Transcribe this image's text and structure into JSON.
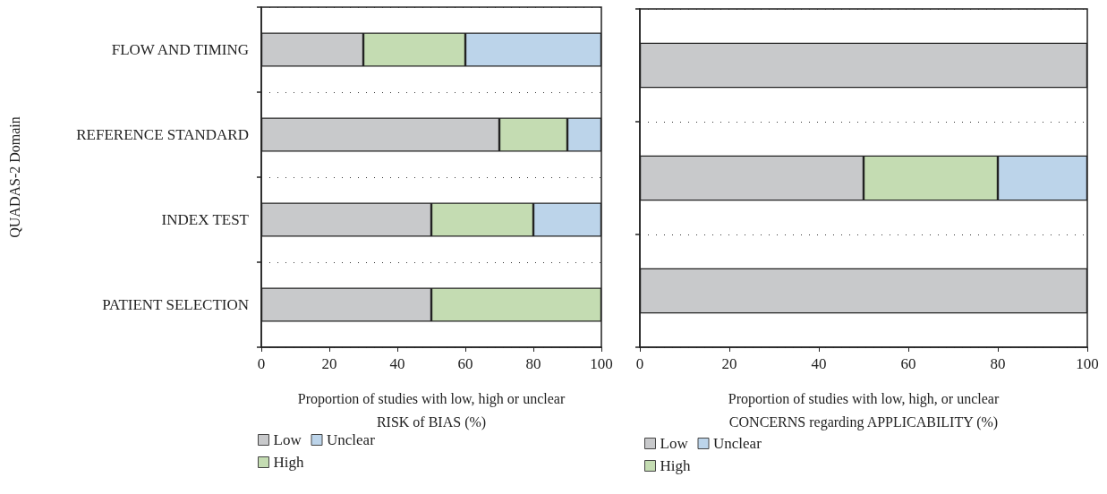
{
  "chart_data": [
    {
      "type": "bar",
      "orientation": "horizontal",
      "stacked": true,
      "ylabel": "QUADAS-2 Domain",
      "xlabel": "Proportion of studies with low, high or unclear\nRISK of BIAS (%)",
      "categories": [
        "FLOW AND TIMING",
        "REFERENCE STANDARD",
        "INDEX TEST",
        "PATIENT SELECTION"
      ],
      "series": [
        {
          "name": "Low",
          "color": "#c8c9cb",
          "values": [
            30,
            70,
            50,
            50
          ]
        },
        {
          "name": "High",
          "color": "#c4dcb2",
          "values": [
            30,
            20,
            30,
            50
          ]
        },
        {
          "name": "Unclear",
          "color": "#bcd4ea",
          "values": [
            40,
            10,
            20,
            0
          ]
        }
      ],
      "xlim": [
        0,
        100
      ],
      "xticks": [
        0,
        20,
        40,
        60,
        80,
        100
      ],
      "grid": "y",
      "legend": "bottom left"
    },
    {
      "type": "bar",
      "orientation": "horizontal",
      "stacked": true,
      "xlabel": "Proportion of studies with low, high, or unclear\nCONCERNS regarding APPLICABILITY (%)",
      "categories": [
        null,
        null,
        null
      ],
      "series": [
        {
          "name": "Low",
          "color": "#c8c9cb",
          "values": [
            100,
            50,
            100
          ]
        },
        {
          "name": "High",
          "color": "#c4dcb2",
          "values": [
            0,
            30,
            0
          ]
        },
        {
          "name": "Unclear",
          "color": "#bcd4ea",
          "values": [
            0,
            20,
            0
          ]
        }
      ],
      "xlim": [
        0,
        100
      ],
      "xticks": [
        0,
        20,
        40,
        60,
        80,
        100
      ],
      "grid": "y",
      "legend": "bottom left",
      "tick_labels": "x"
    }
  ]
}
